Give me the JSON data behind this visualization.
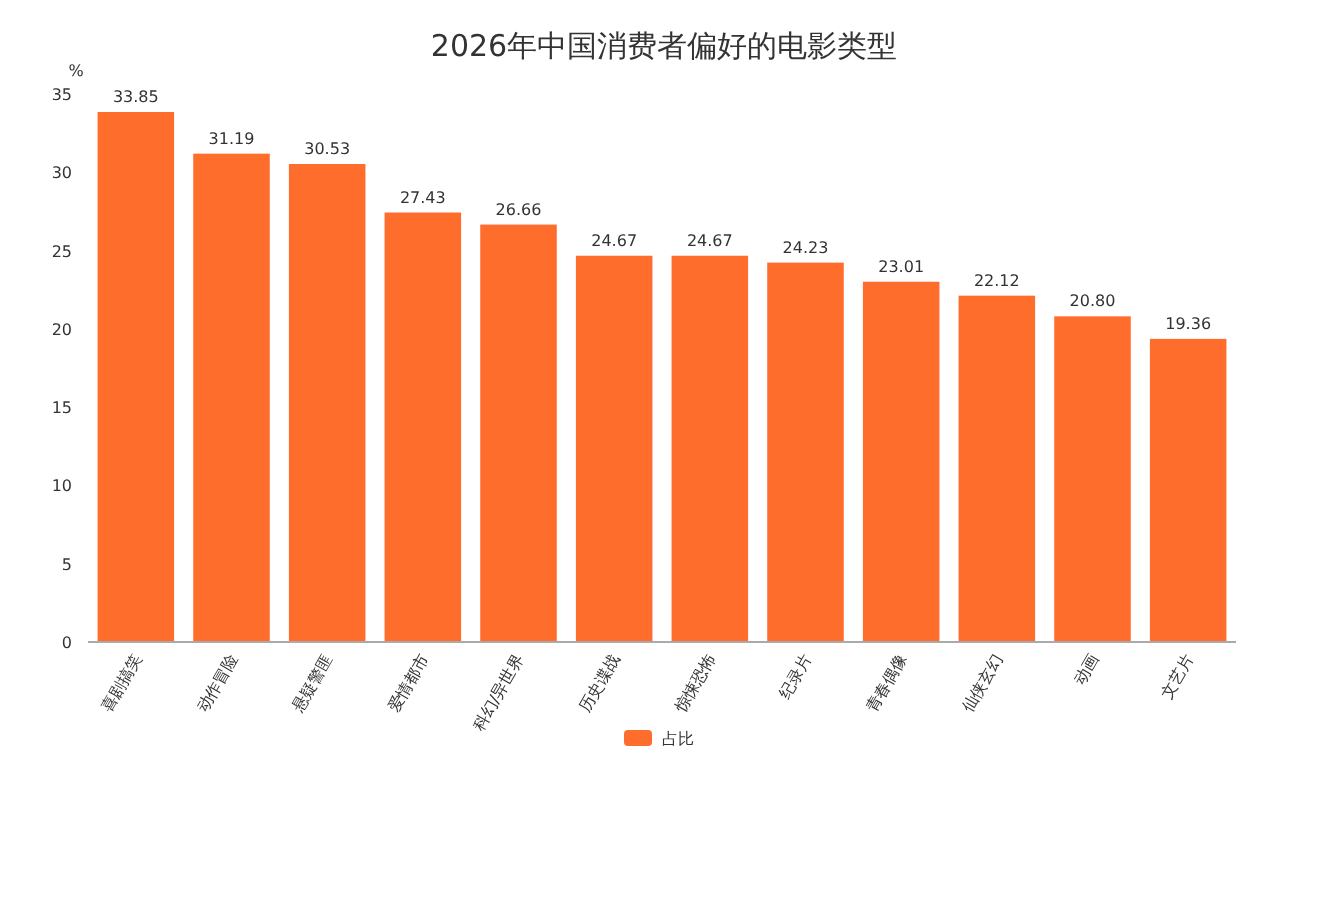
{
  "chart_data": {
    "type": "bar",
    "title": "2026年中国消费者偏好的电影类型",
    "ylabel": "%",
    "categories": [
      "喜剧搞笑",
      "动作冒险",
      "悬疑警匪",
      "爱情都市",
      "科幻/异世界",
      "历史谍战",
      "惊悚恐怖",
      "纪录片",
      "青春偶像",
      "仙侠玄幻",
      "动画",
      "文艺片"
    ],
    "series": [
      {
        "name": "占比",
        "color": "#ff6d2d",
        "values": [
          33.85,
          31.19,
          30.53,
          27.43,
          26.66,
          24.67,
          24.67,
          24.23,
          23.01,
          22.12,
          20.8,
          19.36
        ]
      }
    ],
    "value_labels": [
      "33.85",
      "31.19",
      "30.53",
      "27.43",
      "26.66",
      "24.67",
      "24.67",
      "24.23",
      "23.01",
      "22.12",
      "20.80",
      "19.36"
    ],
    "ylim": [
      0,
      35
    ],
    "yticks": [
      0,
      5,
      10,
      15,
      20,
      25,
      30,
      35
    ],
    "legend": "bottom",
    "grid": false
  }
}
